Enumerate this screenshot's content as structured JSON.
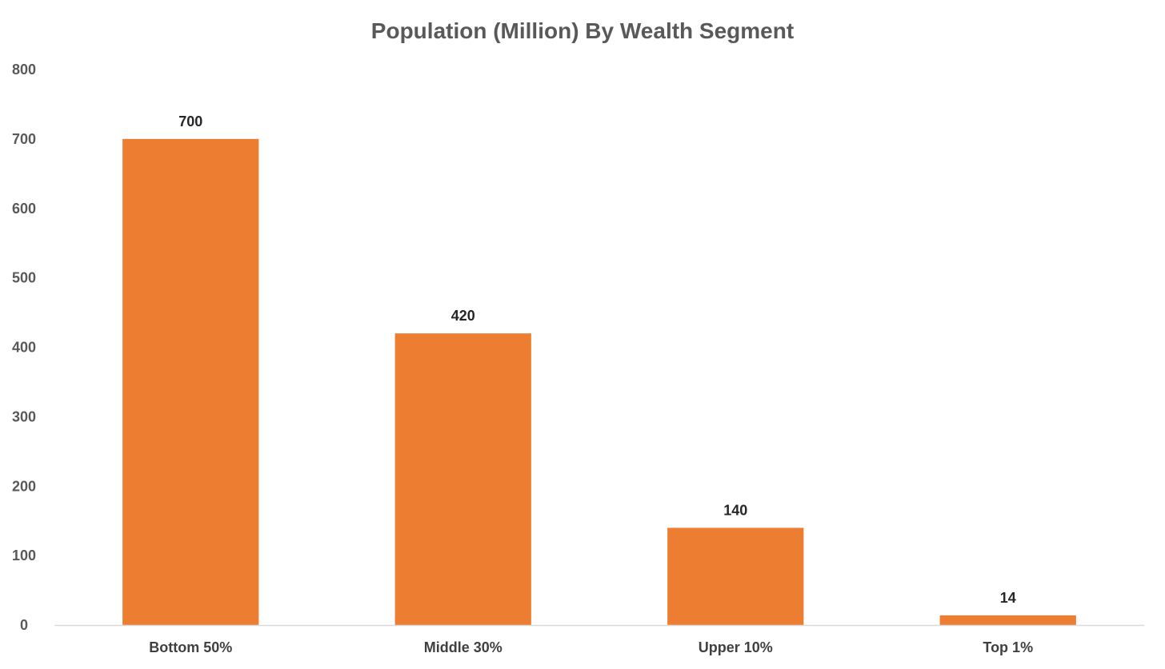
{
  "chart_data": {
    "type": "bar",
    "title": "Population (Million) By Wealth Segment",
    "categories": [
      "Bottom 50%",
      "Middle 30%",
      "Upper 10%",
      "Top 1%"
    ],
    "values": [
      700,
      420,
      140,
      14
    ],
    "data_labels": [
      "700",
      "420",
      "140",
      "14"
    ],
    "xlabel": "",
    "ylabel": "",
    "ylim": [
      0,
      800
    ],
    "yticks": [
      0,
      100,
      200,
      300,
      400,
      500,
      600,
      700,
      800
    ],
    "grid": false,
    "legend": "none",
    "colors": {
      "bar": "#ED7D31",
      "axis": "#D9D9D9"
    }
  }
}
